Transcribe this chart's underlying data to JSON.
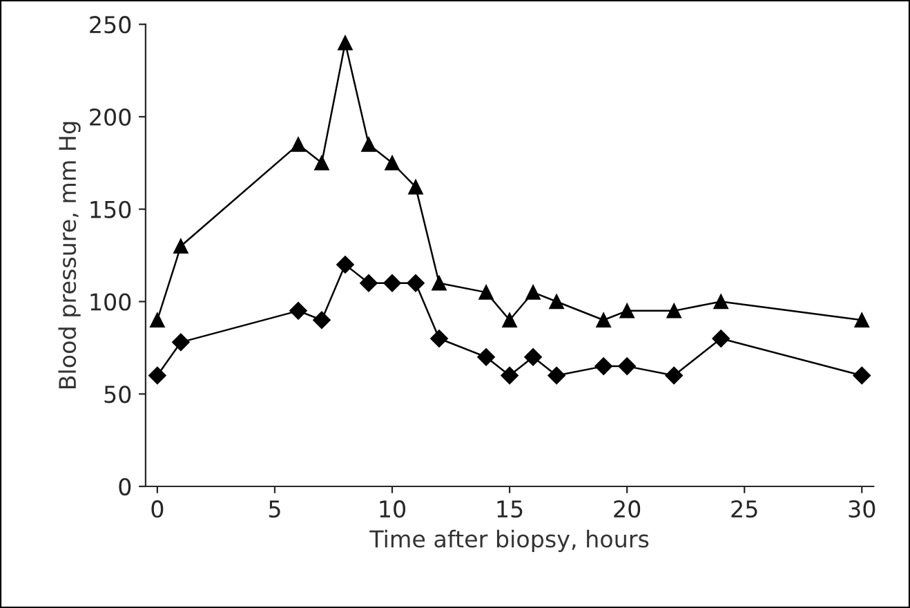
{
  "chart_data": {
    "type": "line",
    "xlabel": "Time after biopsy, hours",
    "ylabel": "Blood pressure, mm Hg",
    "x": [
      0,
      1,
      6,
      7,
      8,
      9,
      10,
      11,
      12,
      14,
      15,
      16,
      17,
      19,
      20,
      22,
      24,
      30
    ],
    "series": [
      {
        "color": "#000000",
        "marker": "triangle",
        "values": [
          90,
          130,
          185,
          175,
          240,
          185,
          175,
          162,
          110,
          105,
          90,
          105,
          100,
          90,
          95,
          95,
          100,
          90
        ]
      },
      {
        "color": "#000000",
        "marker": "diamond",
        "values": [
          60,
          78,
          95,
          90,
          120,
          110,
          110,
          110,
          80,
          70,
          60,
          70,
          60,
          65,
          65,
          60,
          80,
          60
        ]
      }
    ],
    "xlim": [
      -0.5,
      30.5
    ],
    "xticks": [
      0,
      5,
      10,
      15,
      20,
      25,
      30
    ],
    "ylim": [
      0,
      250
    ],
    "yticks": [
      0,
      50,
      100,
      150,
      200,
      250
    ],
    "grid": false,
    "line_style": "solid"
  }
}
